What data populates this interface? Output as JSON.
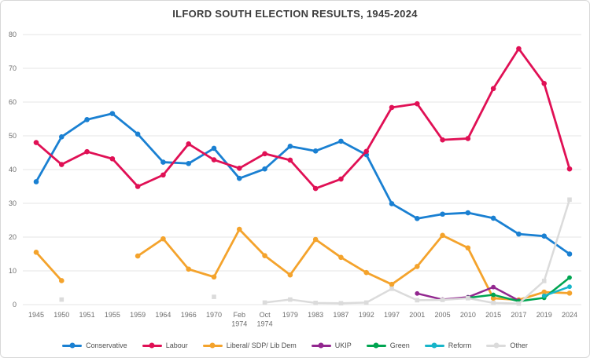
{
  "page": {
    "title": "ILFORD SOUTH ELECTION RESULTS, 1945-2024"
  },
  "chart_data": {
    "type": "line",
    "title": "ILFORD SOUTH ELECTION RESULTS, 1945-2024",
    "xlabel": "",
    "ylabel": "",
    "ylim": [
      0,
      80
    ],
    "y_ticks": [
      0,
      10,
      20,
      30,
      40,
      50,
      60,
      70,
      80
    ],
    "grid": true,
    "legend_position": "bottom",
    "categories": [
      "1945",
      "1950",
      "1951",
      "1955",
      "1959",
      "1964",
      "1966",
      "1970",
      "Feb 1974",
      "Oct 1974",
      "1979",
      "1983",
      "1987",
      "1992",
      "1997",
      "2001",
      "2005",
      "2010",
      "2015",
      "2017",
      "2019",
      "2024"
    ],
    "series": [
      {
        "name": "Conservative",
        "color": "#1a80d2",
        "values": [
          36.4,
          49.7,
          54.8,
          56.6,
          50.5,
          42.2,
          41.8,
          46.3,
          37.4,
          40.2,
          46.9,
          45.5,
          48.4,
          44.4,
          29.9,
          25.5,
          26.8,
          27.2,
          25.6,
          20.9,
          20.3,
          15.0
        ]
      },
      {
        "name": "Labour",
        "color": "#e01055",
        "values": [
          48.0,
          41.5,
          45.3,
          43.2,
          35.0,
          38.4,
          47.6,
          42.9,
          40.4,
          44.7,
          42.8,
          34.4,
          37.2,
          45.4,
          58.4,
          59.5,
          48.8,
          49.2,
          64.0,
          75.8,
          65.5,
          40.2
        ]
      },
      {
        "name": "Liberal/ SDP/ Lib Dem",
        "color": "#f4a32c",
        "values": [
          15.5,
          7.1,
          null,
          null,
          14.4,
          19.5,
          10.5,
          8.2,
          22.3,
          14.5,
          8.8,
          19.3,
          14.0,
          9.5,
          6.0,
          11.3,
          20.5,
          16.8,
          1.9,
          1.4,
          3.7,
          3.4
        ]
      },
      {
        "name": "UKIP",
        "color": "#92278f",
        "values": [
          null,
          null,
          null,
          null,
          null,
          null,
          null,
          null,
          null,
          null,
          null,
          null,
          null,
          null,
          null,
          3.3,
          1.5,
          2.2,
          5.2,
          1.2,
          null,
          null
        ]
      },
      {
        "name": "Green",
        "color": "#00a551",
        "values": [
          null,
          null,
          null,
          null,
          null,
          null,
          null,
          null,
          null,
          null,
          null,
          null,
          null,
          null,
          null,
          null,
          null,
          2.0,
          2.9,
          1.0,
          2.0,
          8.0
        ]
      },
      {
        "name": "Reform",
        "color": "#17b5c9",
        "values": [
          null,
          null,
          null,
          null,
          null,
          null,
          null,
          null,
          null,
          null,
          null,
          null,
          null,
          null,
          null,
          null,
          null,
          null,
          null,
          null,
          2.6,
          5.3
        ]
      },
      {
        "name": "Other",
        "color": "#dbdbdb",
        "values": [
          null,
          1.5,
          null,
          null,
          null,
          null,
          null,
          2.3,
          null,
          0.6,
          1.5,
          0.5,
          0.4,
          0.6,
          4.7,
          1.3,
          1.4,
          1.9,
          0.5,
          0.3,
          7.0,
          31.1
        ]
      }
    ]
  }
}
